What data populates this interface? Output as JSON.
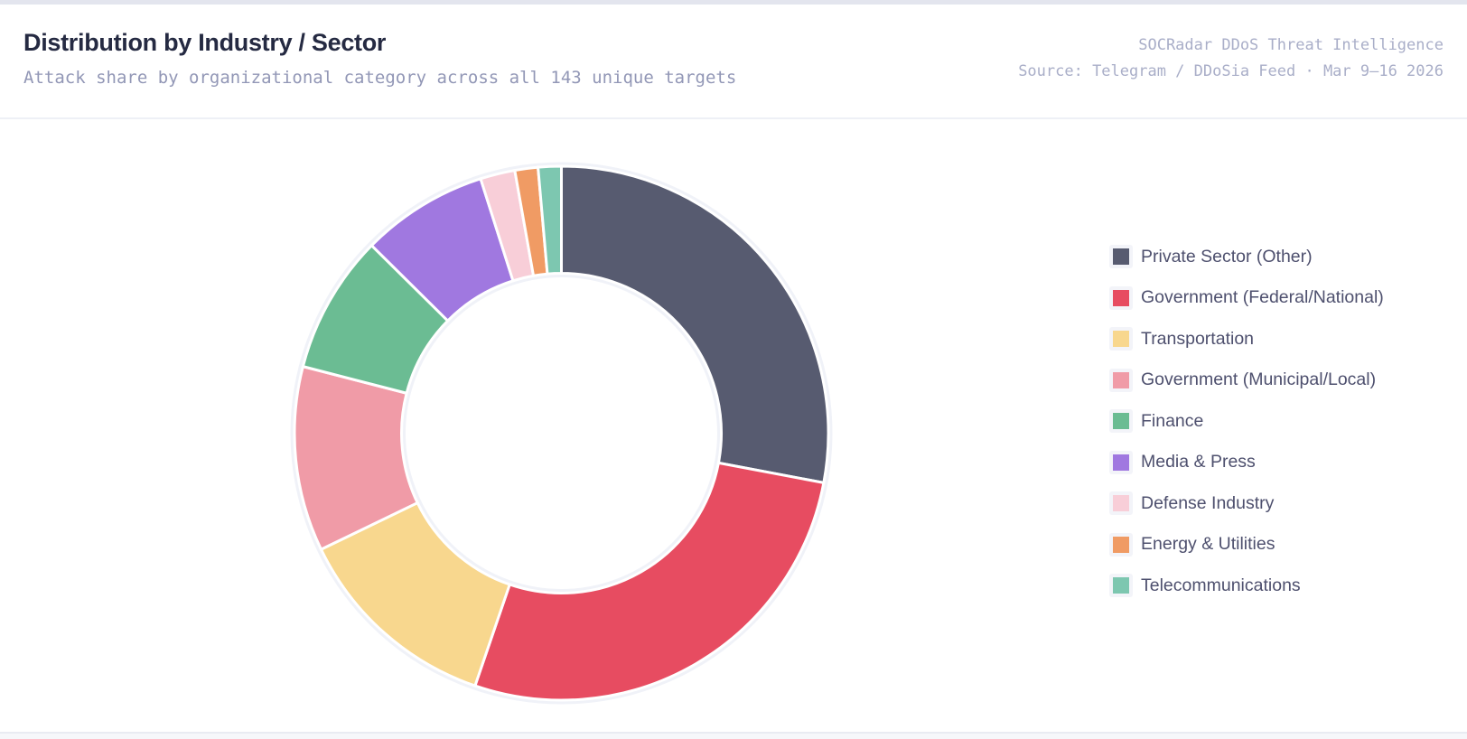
{
  "header": {
    "title": "Distribution by Industry / Sector",
    "subtitle": "Attack share by organizational category across all 143 unique targets",
    "source_line1": "SOCRadar DDoS Threat Intelligence",
    "source_line2": "Source: Telegram / DDoSia Feed · Mar 9–16 2026"
  },
  "chart_data": {
    "type": "pie",
    "subtype": "donut",
    "title": "Distribution by Industry / Sector",
    "total_targets": 143,
    "legend_position": "right",
    "cutout": "60%",
    "start_angle_deg": 0,
    "direction": "clockwise",
    "categories": [
      "Private Sector (Other)",
      "Government (Federal/National)",
      "Transportation",
      "Government (Municipal/Local)",
      "Finance",
      "Media & Press",
      "Defense Industry",
      "Energy & Utilities",
      "Telecommunications"
    ],
    "values": [
      40,
      39,
      18,
      16,
      12,
      11,
      3,
      2,
      2
    ],
    "percents": [
      28.0,
      27.3,
      12.6,
      11.2,
      8.4,
      7.7,
      2.1,
      1.4,
      1.4
    ],
    "colors": [
      "#575b70",
      "#e74c61",
      "#f8d78e",
      "#f09ba7",
      "#6bbc93",
      "#a078e0",
      "#f8ced8",
      "#f09b64",
      "#7dc7b0"
    ]
  }
}
